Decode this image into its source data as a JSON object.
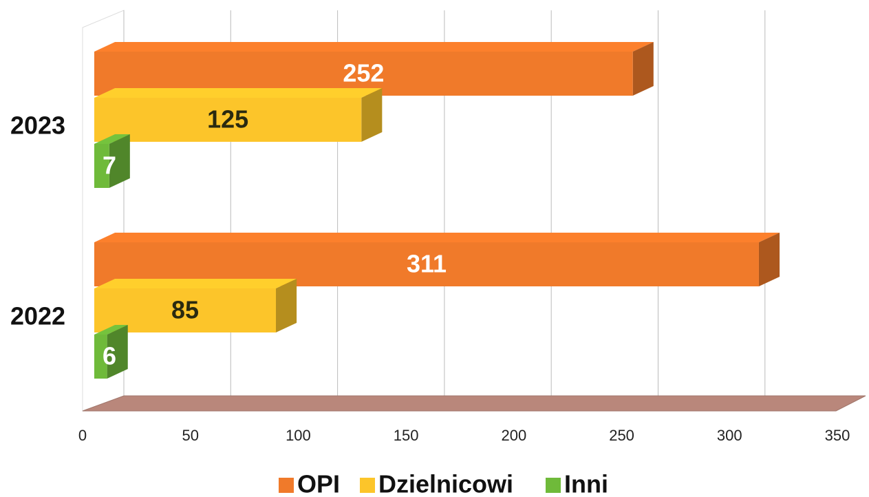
{
  "chart_data": {
    "type": "bar",
    "orientation": "horizontal",
    "categories": [
      "2023",
      "2022"
    ],
    "series": [
      {
        "name": "OPI",
        "color": "#f07a2a",
        "values": [
          252,
          311
        ]
      },
      {
        "name": "Dzielnicowi",
        "color": "#fcc52a",
        "values": [
          125,
          85
        ]
      },
      {
        "name": "Inni",
        "color": "#6fba3a",
        "values": [
          7,
          6
        ]
      }
    ],
    "xlim": [
      0,
      350
    ],
    "xticks": [
      0,
      50,
      100,
      150,
      200,
      250,
      300,
      350
    ],
    "grid": true,
    "legend": "bottom"
  }
}
